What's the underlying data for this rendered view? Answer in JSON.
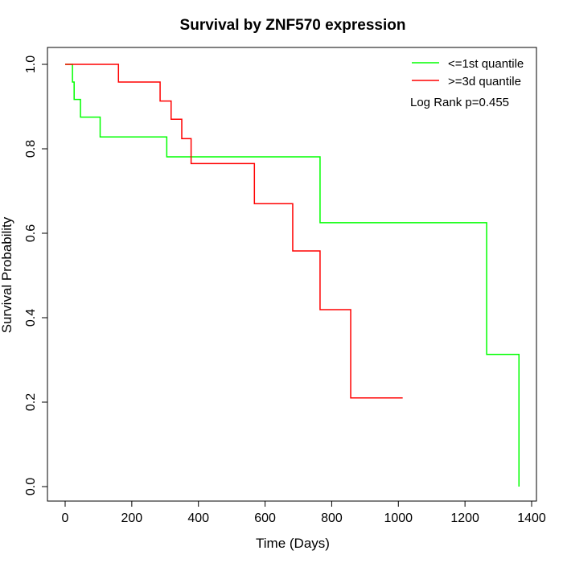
{
  "chart_data": {
    "type": "line",
    "title": "Survival by ZNF570 expression",
    "xlabel": "Time (Days)",
    "ylabel": "Survival Probability",
    "xlim": [
      0,
      1400
    ],
    "ylim": [
      0,
      1
    ],
    "x_ticks": [
      0,
      200,
      400,
      600,
      800,
      1000,
      1200,
      1400
    ],
    "y_ticks": [
      0.0,
      0.2,
      0.4,
      0.6,
      0.8,
      1.0
    ],
    "x_tick_labels": [
      "0",
      "200",
      "400",
      "600",
      "800",
      "1000",
      "1200",
      "1400"
    ],
    "y_tick_labels": [
      "0.0",
      "0.2",
      "0.4",
      "0.6",
      "0.8",
      "1.0"
    ],
    "grid": false,
    "legend_position": "top-right",
    "series": [
      {
        "name": "<=1st quantile",
        "color": "#00ff00",
        "steps": [
          [
            0,
            1.0
          ],
          [
            22,
            0.958
          ],
          [
            27,
            0.917
          ],
          [
            46,
            0.875
          ],
          [
            105,
            0.828
          ],
          [
            305,
            0.781
          ],
          [
            765,
            0.625
          ],
          [
            1265,
            0.313
          ],
          [
            1362,
            0.0
          ]
        ],
        "end_x": 1362
      },
      {
        "name": ">=3d quantile",
        "color": "#ff0000",
        "steps": [
          [
            0,
            1.0
          ],
          [
            160,
            0.958
          ],
          [
            285,
            0.913
          ],
          [
            318,
            0.87
          ],
          [
            350,
            0.824
          ],
          [
            378,
            0.765
          ],
          [
            568,
            0.67
          ],
          [
            683,
            0.558
          ],
          [
            765,
            0.419
          ],
          [
            857,
            0.21
          ]
        ],
        "end_x": 1013
      }
    ],
    "annotations": [
      "Log Rank p=0.455"
    ]
  }
}
